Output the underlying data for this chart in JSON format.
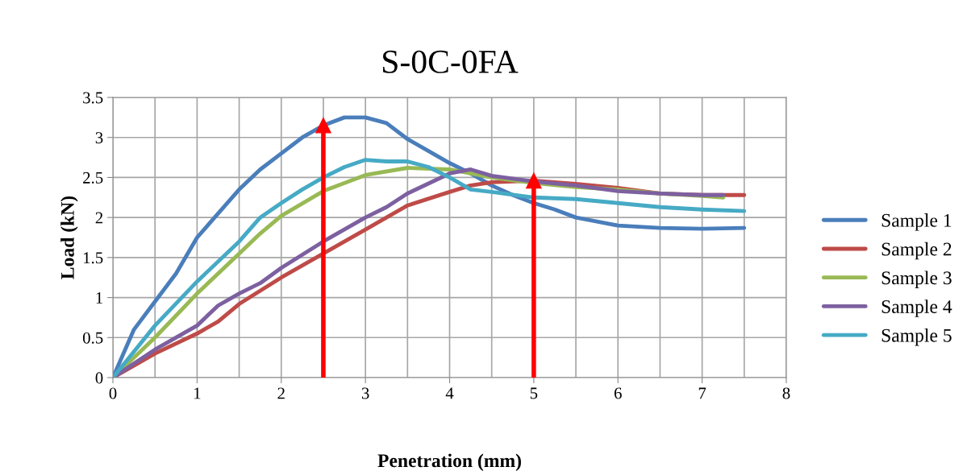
{
  "chart_data": {
    "type": "line",
    "title": "S-0C-0FA",
    "xlabel": "Penetration (mm)",
    "ylabel": "Load (kN)",
    "xlim": [
      0,
      8
    ],
    "xticks": [
      0,
      1,
      2,
      3,
      4,
      5,
      6,
      7,
      8
    ],
    "ylim": [
      0,
      3.5
    ],
    "yticks": [
      0,
      0.5,
      1,
      1.5,
      2,
      2.5,
      3,
      3.5
    ],
    "grid": true,
    "legend": "right",
    "marker": "none",
    "line_style": "solid",
    "ref_lines": [
      {
        "axis": "x",
        "value": 2.5,
        "color": "#ff0000"
      },
      {
        "axis": "x",
        "value": 5,
        "color": "#ff0000"
      }
    ],
    "series": [
      {
        "name": "Sample 1",
        "color": "#4a7ebb",
        "x": [
          0,
          0.25,
          0.5,
          0.75,
          1,
          1.25,
          1.5,
          1.75,
          2,
          2.25,
          2.5,
          2.75,
          3,
          3.25,
          3.5,
          3.75,
          4,
          4.25,
          4.5,
          4.75,
          5,
          5.25,
          5.5,
          5.75,
          6,
          6.5,
          7,
          7.5
        ],
        "values": [
          0,
          0.6,
          0.95,
          1.3,
          1.75,
          2.05,
          2.35,
          2.6,
          2.8,
          3.0,
          3.15,
          3.25,
          3.25,
          3.18,
          2.98,
          2.83,
          2.68,
          2.55,
          2.4,
          2.28,
          2.18,
          2.1,
          2.0,
          1.95,
          1.9,
          1.87,
          1.86,
          1.87
        ]
      },
      {
        "name": "Sample 2",
        "color": "#be4b48",
        "x": [
          0,
          0.5,
          1,
          1.25,
          1.5,
          2,
          2.5,
          3,
          3.25,
          3.5,
          4,
          4.25,
          4.5,
          5,
          5.5,
          6,
          6.5,
          7,
          7.5
        ],
        "values": [
          0,
          0.3,
          0.55,
          0.7,
          0.92,
          1.25,
          1.55,
          1.85,
          2.0,
          2.15,
          2.32,
          2.4,
          2.44,
          2.46,
          2.42,
          2.37,
          2.3,
          2.28,
          2.28
        ]
      },
      {
        "name": "Sample 3",
        "color": "#98b954",
        "x": [
          0,
          0.5,
          1,
          1.5,
          1.75,
          2,
          2.5,
          3,
          3.5,
          4,
          4.5,
          5,
          5.5,
          6,
          6.5,
          7,
          7.25
        ],
        "values": [
          0,
          0.5,
          1.05,
          1.55,
          1.8,
          2.02,
          2.33,
          2.53,
          2.62,
          2.6,
          2.5,
          2.43,
          2.38,
          2.35,
          2.3,
          2.27,
          2.25
        ]
      },
      {
        "name": "Sample 4",
        "color": "#7d60a0",
        "x": [
          0,
          0.5,
          1,
          1.25,
          1.5,
          1.75,
          2,
          2.5,
          3,
          3.25,
          3.5,
          4,
          4.25,
          4.5,
          5,
          5.5,
          6,
          6.5,
          7,
          7.25
        ],
        "values": [
          0,
          0.35,
          0.65,
          0.9,
          1.05,
          1.18,
          1.37,
          1.7,
          2.0,
          2.13,
          2.3,
          2.55,
          2.6,
          2.52,
          2.45,
          2.4,
          2.33,
          2.3,
          2.28,
          2.28
        ]
      },
      {
        "name": "Sample 5",
        "color": "#46aac5",
        "x": [
          0,
          0.5,
          1,
          1.5,
          1.75,
          2,
          2.25,
          2.5,
          2.75,
          3,
          3.25,
          3.5,
          3.75,
          4,
          4.25,
          4.5,
          5,
          5.5,
          6,
          6.5,
          7,
          7.5
        ],
        "values": [
          0,
          0.65,
          1.2,
          1.7,
          2.0,
          2.18,
          2.35,
          2.5,
          2.63,
          2.72,
          2.7,
          2.7,
          2.63,
          2.5,
          2.35,
          2.32,
          2.25,
          2.23,
          2.18,
          2.13,
          2.1,
          2.08
        ]
      }
    ]
  }
}
